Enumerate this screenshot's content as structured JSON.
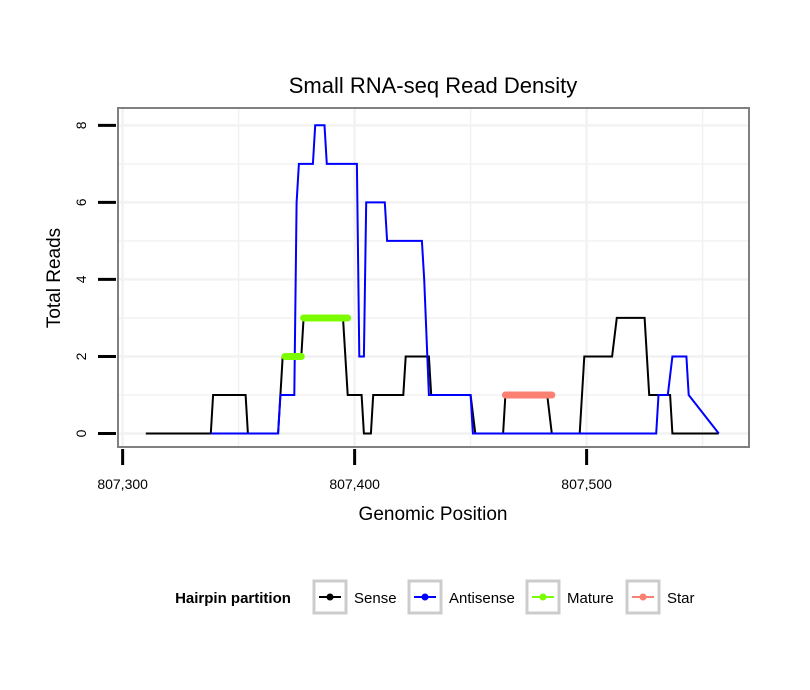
{
  "chart_data": {
    "type": "line",
    "title": "Small RNA-seq Read Density",
    "xlabel": "Genomic Position",
    "ylabel": "Total Reads",
    "xlim": [
      807298,
      807570
    ],
    "ylim": [
      -0.35,
      8.45
    ],
    "x_ticks": [
      807300,
      807400,
      807500
    ],
    "x_tick_labels": [
      "807,300",
      "807,400",
      "807,500"
    ],
    "y_ticks": [
      0,
      2,
      4,
      6,
      8
    ],
    "y_tick_labels": [
      "0",
      "2",
      "4",
      "6",
      "8"
    ],
    "grid": true,
    "legend": {
      "title": "Hairpin partition",
      "position": "bottom",
      "entries": [
        {
          "key": "sense",
          "label": "Sense",
          "color": "#000000"
        },
        {
          "key": "antisense",
          "label": "Antisense",
          "color": "#0000ff"
        },
        {
          "key": "mature",
          "label": "Mature",
          "color": "#7cfc00"
        },
        {
          "key": "star",
          "label": "Star",
          "color": "#fa8072"
        }
      ]
    },
    "series": [
      {
        "name": "Sense",
        "color": "#000000",
        "x": [
          807310,
          807338,
          807339,
          807353,
          807354,
          807366,
          807367,
          807369,
          807375,
          807377,
          807378,
          807395,
          807397,
          807403,
          807404,
          807407,
          807408,
          807421,
          807422,
          807432,
          807433,
          807445,
          807450,
          807452,
          807464,
          807465,
          807483,
          807485,
          807497,
          807499,
          807511,
          807513,
          807525,
          807527,
          807532,
          807536,
          807537,
          807557
        ],
        "y": [
          0,
          0,
          1,
          1,
          0,
          0,
          0,
          2,
          2,
          2,
          3,
          3,
          1,
          1,
          0,
          0,
          1,
          1,
          2,
          2,
          1,
          1,
          1,
          0,
          0,
          1,
          1,
          0,
          0,
          2,
          2,
          3,
          3,
          1,
          1,
          1,
          0,
          0
        ]
      },
      {
        "name": "Antisense",
        "color": "#0000ff",
        "x": [
          807338,
          807367,
          807368,
          807374,
          807375,
          807376,
          807382,
          807383,
          807387,
          807388,
          807401,
          807402,
          807404,
          807405,
          807413,
          807414,
          807429,
          807430,
          807432,
          807450,
          807451,
          807530,
          807531,
          807535,
          807537,
          807543,
          807544,
          807557
        ],
        "y": [
          0,
          0,
          1,
          1,
          6,
          7,
          7,
          8,
          8,
          7,
          7,
          2,
          2,
          6,
          6,
          5,
          5,
          4,
          1,
          1,
          0,
          0,
          1,
          1,
          2,
          2,
          1,
          0
        ]
      },
      {
        "name": "Mature",
        "color": "#7cfc00",
        "segments": [
          {
            "x_start": 807370,
            "x_end": 807377,
            "y": 2
          },
          {
            "x_start": 807378,
            "x_end": 807397,
            "y": 3
          }
        ]
      },
      {
        "name": "Star",
        "color": "#fa8072",
        "segments": [
          {
            "x_start": 807465,
            "x_end": 807485,
            "y": 1
          }
        ]
      }
    ]
  }
}
